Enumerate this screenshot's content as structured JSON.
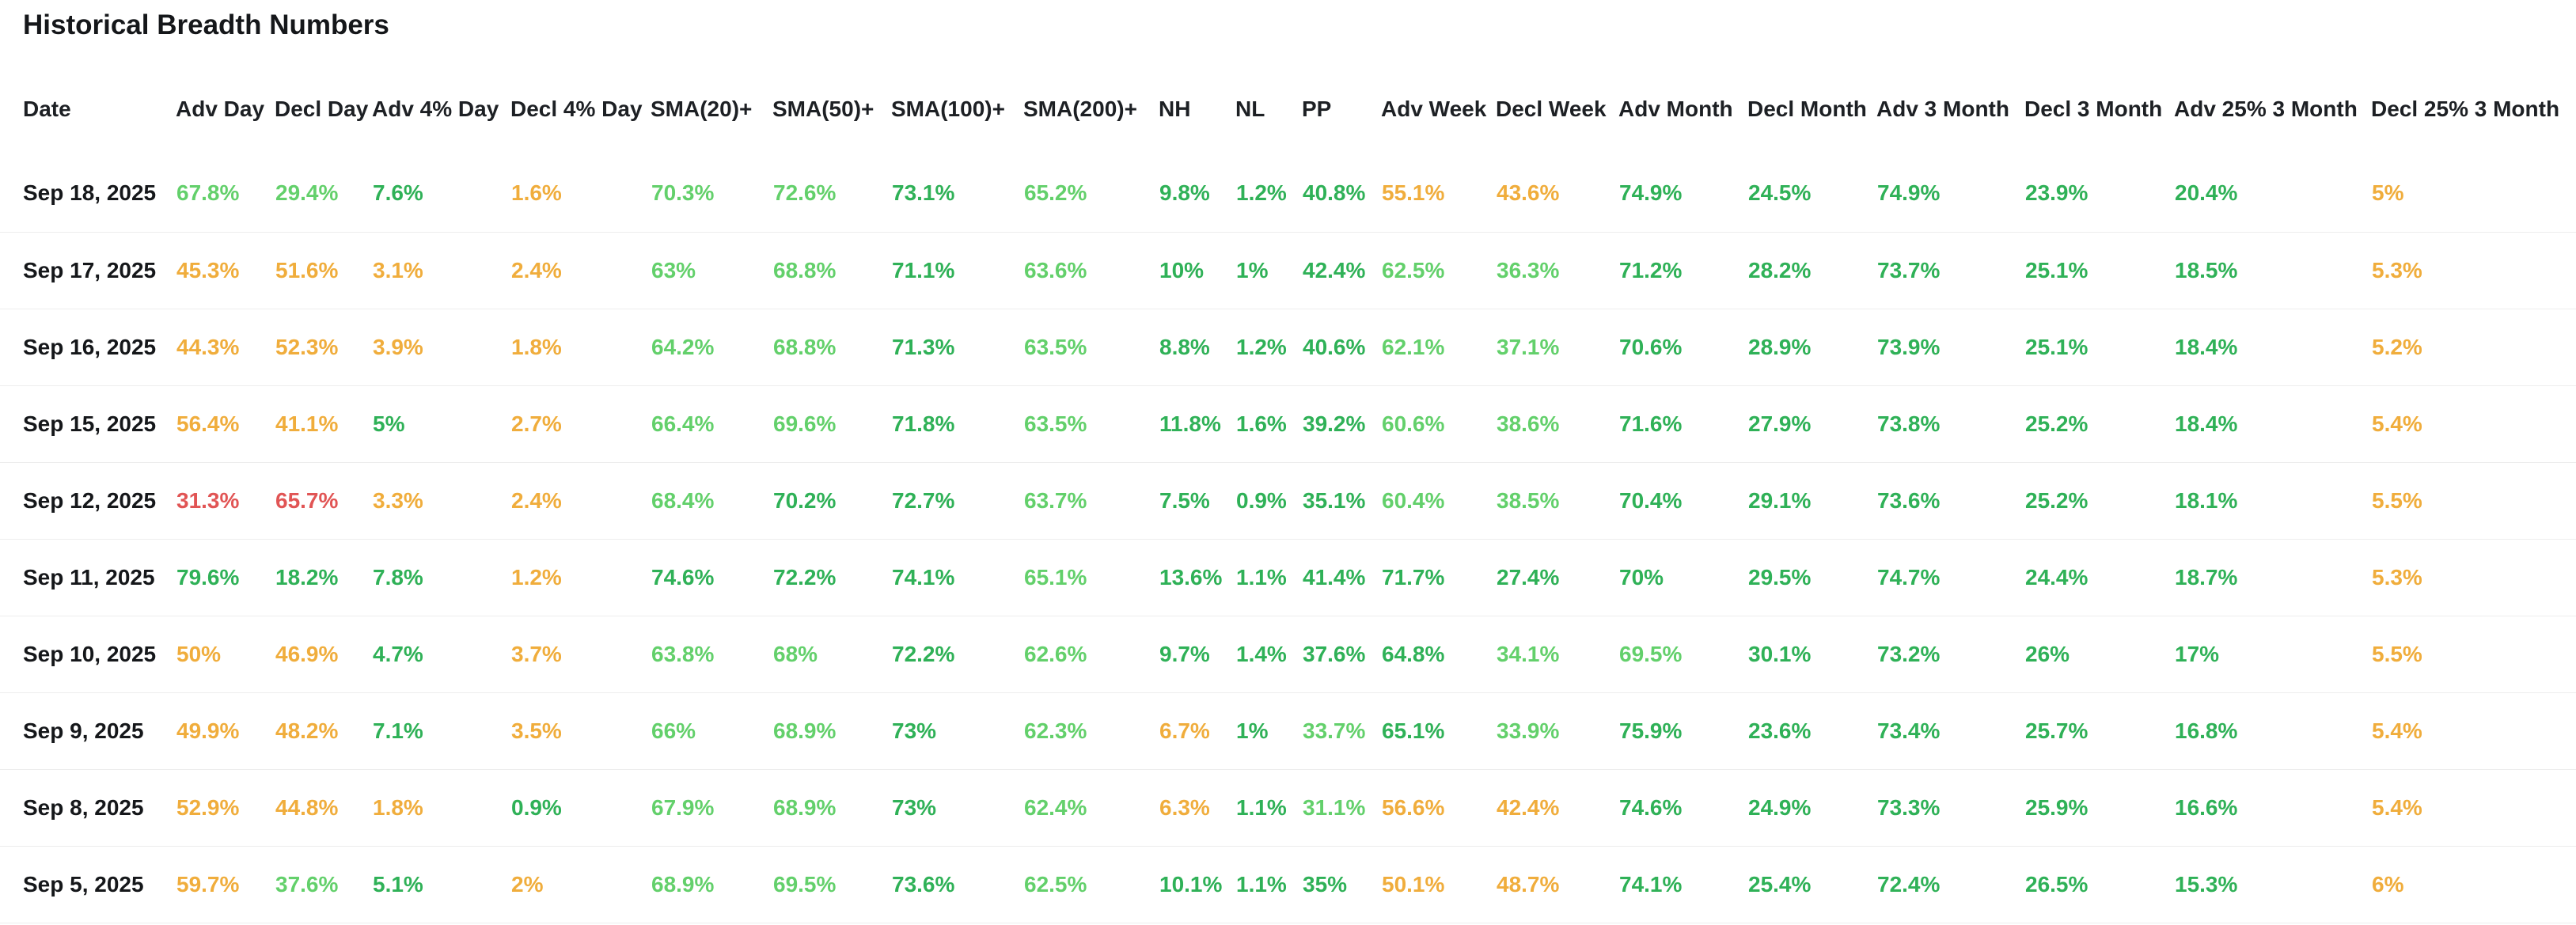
{
  "page": {
    "title": "Historical Breadth Numbers"
  },
  "colors": {
    "green": "#2fb157",
    "light_green": "#63d06b",
    "orange": "#f0ad3c",
    "red": "#e15555",
    "text_dark": "#15171a"
  },
  "table": {
    "columns": [
      "Date",
      "Adv Day",
      "Decl Day",
      "Adv 4% Day",
      "Decl 4% Day",
      "SMA(20)+",
      "SMA(50)+",
      "SMA(100)+",
      "SMA(200)+",
      "NH",
      "NL",
      "PP",
      "Adv Week",
      "Decl Week",
      "Adv Month",
      "Decl Month",
      "Adv 3 Month",
      "Decl 3 Month",
      "Adv 25% 3 Month",
      "Decl 25% 3 Month"
    ],
    "rows": [
      {
        "date": "Sep 18, 2025",
        "cells": [
          [
            "67.8%",
            "light_green"
          ],
          [
            "29.4%",
            "light_green"
          ],
          [
            "7.6%",
            "green"
          ],
          [
            "1.6%",
            "orange"
          ],
          [
            "70.3%",
            "light_green"
          ],
          [
            "72.6%",
            "light_green"
          ],
          [
            "73.1%",
            "green"
          ],
          [
            "65.2%",
            "light_green"
          ],
          [
            "9.8%",
            "green"
          ],
          [
            "1.2%",
            "green"
          ],
          [
            "40.8%",
            "green"
          ],
          [
            "55.1%",
            "orange"
          ],
          [
            "43.6%",
            "orange"
          ],
          [
            "74.9%",
            "green"
          ],
          [
            "24.5%",
            "green"
          ],
          [
            "74.9%",
            "green"
          ],
          [
            "23.9%",
            "green"
          ],
          [
            "20.4%",
            "green"
          ],
          [
            "5%",
            "orange"
          ]
        ]
      },
      {
        "date": "Sep 17, 2025",
        "cells": [
          [
            "45.3%",
            "orange"
          ],
          [
            "51.6%",
            "orange"
          ],
          [
            "3.1%",
            "orange"
          ],
          [
            "2.4%",
            "orange"
          ],
          [
            "63%",
            "light_green"
          ],
          [
            "68.8%",
            "light_green"
          ],
          [
            "71.1%",
            "green"
          ],
          [
            "63.6%",
            "light_green"
          ],
          [
            "10%",
            "green"
          ],
          [
            "1%",
            "green"
          ],
          [
            "42.4%",
            "green"
          ],
          [
            "62.5%",
            "light_green"
          ],
          [
            "36.3%",
            "light_green"
          ],
          [
            "71.2%",
            "green"
          ],
          [
            "28.2%",
            "green"
          ],
          [
            "73.7%",
            "green"
          ],
          [
            "25.1%",
            "green"
          ],
          [
            "18.5%",
            "green"
          ],
          [
            "5.3%",
            "orange"
          ]
        ]
      },
      {
        "date": "Sep 16, 2025",
        "cells": [
          [
            "44.3%",
            "orange"
          ],
          [
            "52.3%",
            "orange"
          ],
          [
            "3.9%",
            "orange"
          ],
          [
            "1.8%",
            "orange"
          ],
          [
            "64.2%",
            "light_green"
          ],
          [
            "68.8%",
            "light_green"
          ],
          [
            "71.3%",
            "green"
          ],
          [
            "63.5%",
            "light_green"
          ],
          [
            "8.8%",
            "green"
          ],
          [
            "1.2%",
            "green"
          ],
          [
            "40.6%",
            "green"
          ],
          [
            "62.1%",
            "light_green"
          ],
          [
            "37.1%",
            "light_green"
          ],
          [
            "70.6%",
            "green"
          ],
          [
            "28.9%",
            "green"
          ],
          [
            "73.9%",
            "green"
          ],
          [
            "25.1%",
            "green"
          ],
          [
            "18.4%",
            "green"
          ],
          [
            "5.2%",
            "orange"
          ]
        ]
      },
      {
        "date": "Sep 15, 2025",
        "cells": [
          [
            "56.4%",
            "orange"
          ],
          [
            "41.1%",
            "orange"
          ],
          [
            "5%",
            "green"
          ],
          [
            "2.7%",
            "orange"
          ],
          [
            "66.4%",
            "light_green"
          ],
          [
            "69.6%",
            "light_green"
          ],
          [
            "71.8%",
            "green"
          ],
          [
            "63.5%",
            "light_green"
          ],
          [
            "11.8%",
            "green"
          ],
          [
            "1.6%",
            "green"
          ],
          [
            "39.2%",
            "green"
          ],
          [
            "60.6%",
            "light_green"
          ],
          [
            "38.6%",
            "light_green"
          ],
          [
            "71.6%",
            "green"
          ],
          [
            "27.9%",
            "green"
          ],
          [
            "73.8%",
            "green"
          ],
          [
            "25.2%",
            "green"
          ],
          [
            "18.4%",
            "green"
          ],
          [
            "5.4%",
            "orange"
          ]
        ]
      },
      {
        "date": "Sep 12, 2025",
        "cells": [
          [
            "31.3%",
            "red"
          ],
          [
            "65.7%",
            "red"
          ],
          [
            "3.3%",
            "orange"
          ],
          [
            "2.4%",
            "orange"
          ],
          [
            "68.4%",
            "light_green"
          ],
          [
            "70.2%",
            "green"
          ],
          [
            "72.7%",
            "green"
          ],
          [
            "63.7%",
            "light_green"
          ],
          [
            "7.5%",
            "green"
          ],
          [
            "0.9%",
            "green"
          ],
          [
            "35.1%",
            "green"
          ],
          [
            "60.4%",
            "light_green"
          ],
          [
            "38.5%",
            "light_green"
          ],
          [
            "70.4%",
            "green"
          ],
          [
            "29.1%",
            "green"
          ],
          [
            "73.6%",
            "green"
          ],
          [
            "25.2%",
            "green"
          ],
          [
            "18.1%",
            "green"
          ],
          [
            "5.5%",
            "orange"
          ]
        ]
      },
      {
        "date": "Sep 11, 2025",
        "cells": [
          [
            "79.6%",
            "green"
          ],
          [
            "18.2%",
            "green"
          ],
          [
            "7.8%",
            "green"
          ],
          [
            "1.2%",
            "orange"
          ],
          [
            "74.6%",
            "green"
          ],
          [
            "72.2%",
            "green"
          ],
          [
            "74.1%",
            "green"
          ],
          [
            "65.1%",
            "light_green"
          ],
          [
            "13.6%",
            "green"
          ],
          [
            "1.1%",
            "green"
          ],
          [
            "41.4%",
            "green"
          ],
          [
            "71.7%",
            "green"
          ],
          [
            "27.4%",
            "green"
          ],
          [
            "70%",
            "green"
          ],
          [
            "29.5%",
            "green"
          ],
          [
            "74.7%",
            "green"
          ],
          [
            "24.4%",
            "green"
          ],
          [
            "18.7%",
            "green"
          ],
          [
            "5.3%",
            "orange"
          ]
        ]
      },
      {
        "date": "Sep 10, 2025",
        "cells": [
          [
            "50%",
            "orange"
          ],
          [
            "46.9%",
            "orange"
          ],
          [
            "4.7%",
            "green"
          ],
          [
            "3.7%",
            "orange"
          ],
          [
            "63.8%",
            "light_green"
          ],
          [
            "68%",
            "light_green"
          ],
          [
            "72.2%",
            "green"
          ],
          [
            "62.6%",
            "light_green"
          ],
          [
            "9.7%",
            "green"
          ],
          [
            "1.4%",
            "green"
          ],
          [
            "37.6%",
            "green"
          ],
          [
            "64.8%",
            "green"
          ],
          [
            "34.1%",
            "light_green"
          ],
          [
            "69.5%",
            "light_green"
          ],
          [
            "30.1%",
            "green"
          ],
          [
            "73.2%",
            "green"
          ],
          [
            "26%",
            "green"
          ],
          [
            "17%",
            "green"
          ],
          [
            "5.5%",
            "orange"
          ]
        ]
      },
      {
        "date": "Sep 9, 2025",
        "cells": [
          [
            "49.9%",
            "orange"
          ],
          [
            "48.2%",
            "orange"
          ],
          [
            "7.1%",
            "green"
          ],
          [
            "3.5%",
            "orange"
          ],
          [
            "66%",
            "light_green"
          ],
          [
            "68.9%",
            "light_green"
          ],
          [
            "73%",
            "green"
          ],
          [
            "62.3%",
            "light_green"
          ],
          [
            "6.7%",
            "orange"
          ],
          [
            "1%",
            "green"
          ],
          [
            "33.7%",
            "light_green"
          ],
          [
            "65.1%",
            "green"
          ],
          [
            "33.9%",
            "light_green"
          ],
          [
            "75.9%",
            "green"
          ],
          [
            "23.6%",
            "green"
          ],
          [
            "73.4%",
            "green"
          ],
          [
            "25.7%",
            "green"
          ],
          [
            "16.8%",
            "green"
          ],
          [
            "5.4%",
            "orange"
          ]
        ]
      },
      {
        "date": "Sep 8, 2025",
        "cells": [
          [
            "52.9%",
            "orange"
          ],
          [
            "44.8%",
            "orange"
          ],
          [
            "1.8%",
            "orange"
          ],
          [
            "0.9%",
            "green"
          ],
          [
            "67.9%",
            "light_green"
          ],
          [
            "68.9%",
            "light_green"
          ],
          [
            "73%",
            "green"
          ],
          [
            "62.4%",
            "light_green"
          ],
          [
            "6.3%",
            "orange"
          ],
          [
            "1.1%",
            "green"
          ],
          [
            "31.1%",
            "light_green"
          ],
          [
            "56.6%",
            "orange"
          ],
          [
            "42.4%",
            "orange"
          ],
          [
            "74.6%",
            "green"
          ],
          [
            "24.9%",
            "green"
          ],
          [
            "73.3%",
            "green"
          ],
          [
            "25.9%",
            "green"
          ],
          [
            "16.6%",
            "green"
          ],
          [
            "5.4%",
            "orange"
          ]
        ]
      },
      {
        "date": "Sep 5, 2025",
        "cells": [
          [
            "59.7%",
            "orange"
          ],
          [
            "37.6%",
            "light_green"
          ],
          [
            "5.1%",
            "green"
          ],
          [
            "2%",
            "orange"
          ],
          [
            "68.9%",
            "light_green"
          ],
          [
            "69.5%",
            "light_green"
          ],
          [
            "73.6%",
            "green"
          ],
          [
            "62.5%",
            "light_green"
          ],
          [
            "10.1%",
            "green"
          ],
          [
            "1.1%",
            "green"
          ],
          [
            "35%",
            "green"
          ],
          [
            "50.1%",
            "orange"
          ],
          [
            "48.7%",
            "orange"
          ],
          [
            "74.1%",
            "green"
          ],
          [
            "25.4%",
            "green"
          ],
          [
            "72.4%",
            "green"
          ],
          [
            "26.5%",
            "green"
          ],
          [
            "15.3%",
            "green"
          ],
          [
            "6%",
            "orange"
          ]
        ]
      }
    ]
  }
}
